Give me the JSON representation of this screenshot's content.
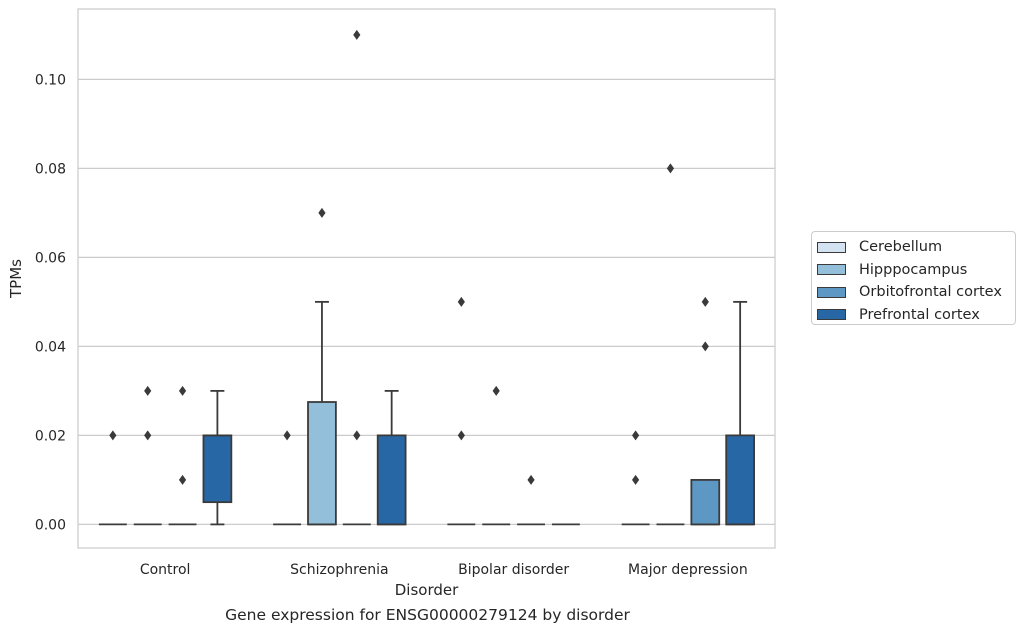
{
  "chart_data": {
    "type": "box",
    "xlabel": "Disorder",
    "ylabel": "TPMs",
    "ylim": [
      -0.0053,
      0.1158
    ],
    "yticks": [
      0.0,
      0.02,
      0.04,
      0.06,
      0.08,
      0.1
    ],
    "ytick_labels": [
      "0.00",
      "0.02",
      "0.04",
      "0.06",
      "0.08",
      "0.10"
    ],
    "categories": [
      "Control",
      "Schizophrenia",
      "Bipolar disorder",
      "Major depression"
    ],
    "grid": "horizontal",
    "legend_position": "right",
    "series": [
      {
        "name": "Cerebellum",
        "color": "#d4e3f1",
        "boxes": [
          {
            "q1": 0,
            "median": 0,
            "q3": 0,
            "whisker_low": 0,
            "whisker_high": 0,
            "outliers": [
              0.02
            ]
          },
          {
            "q1": 0,
            "median": 0,
            "q3": 0,
            "whisker_low": 0,
            "whisker_high": 0,
            "outliers": [
              0.02
            ]
          },
          {
            "q1": 0,
            "median": 0,
            "q3": 0,
            "whisker_low": 0,
            "whisker_high": 0,
            "outliers": [
              0.02,
              0.05
            ]
          },
          {
            "q1": 0,
            "median": 0,
            "q3": 0,
            "whisker_low": 0,
            "whisker_high": 0,
            "outliers": [
              0.01,
              0.02
            ]
          }
        ]
      },
      {
        "name": "Hipppocampus",
        "color": "#94bfdb",
        "boxes": [
          {
            "q1": 0,
            "median": 0,
            "q3": 0,
            "whisker_low": 0,
            "whisker_high": 0,
            "outliers": [
              0.02,
              0.03
            ]
          },
          {
            "q1": 0,
            "median": 0,
            "q3": 0.0275,
            "whisker_low": 0,
            "whisker_high": 0.05,
            "outliers": [
              0.07
            ]
          },
          {
            "q1": 0,
            "median": 0,
            "q3": 0,
            "whisker_low": 0,
            "whisker_high": 0,
            "outliers": [
              0.03
            ]
          },
          {
            "q1": 0,
            "median": 0,
            "q3": 0,
            "whisker_low": 0,
            "whisker_high": 0,
            "outliers": [
              0.08
            ]
          }
        ]
      },
      {
        "name": "Orbitofrontal cortex",
        "color": "#5d98c4",
        "boxes": [
          {
            "q1": 0,
            "median": 0,
            "q3": 0,
            "whisker_low": 0,
            "whisker_high": 0,
            "outliers": [
              0.01,
              0.03
            ]
          },
          {
            "q1": 0,
            "median": 0,
            "q3": 0,
            "whisker_low": 0,
            "whisker_high": 0,
            "outliers": [
              0.02,
              0.11
            ]
          },
          {
            "q1": 0,
            "median": 0,
            "q3": 0,
            "whisker_low": 0,
            "whisker_high": 0,
            "outliers": [
              0.01
            ]
          },
          {
            "q1": 0,
            "median": 0,
            "q3": 0.01,
            "whisker_low": 0,
            "whisker_high": 0.01,
            "outliers": [
              0.04,
              0.05
            ]
          }
        ]
      },
      {
        "name": "Prefrontal cortex",
        "color": "#2867a5",
        "boxes": [
          {
            "q1": 0.005,
            "median": 0.02,
            "q3": 0.02,
            "whisker_low": 0,
            "whisker_high": 0.03,
            "outliers": []
          },
          {
            "q1": 0,
            "median": 0,
            "q3": 0.02,
            "whisker_low": 0,
            "whisker_high": 0.03,
            "outliers": []
          },
          {
            "q1": 0,
            "median": 0,
            "q3": 0,
            "whisker_low": 0,
            "whisker_high": 0,
            "outliers": []
          },
          {
            "q1": 0,
            "median": 0,
            "q3": 0.02,
            "whisker_low": 0,
            "whisker_high": 0.05,
            "outliers": []
          }
        ]
      }
    ]
  },
  "caption": "Gene expression for ENSG00000279124 by disorder"
}
